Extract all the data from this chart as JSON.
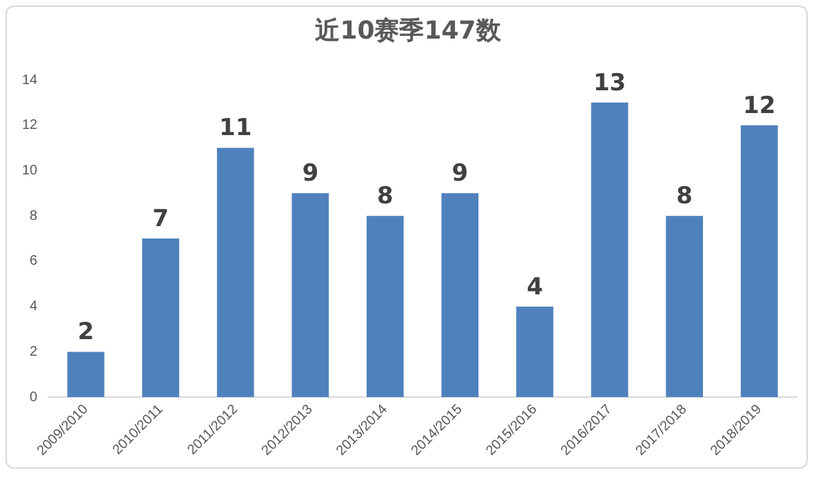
{
  "chart_data": {
    "type": "bar",
    "title": "近10赛季147数",
    "categories": [
      "2009/2010",
      "2010/2011",
      "2011/2012",
      "2012/2013",
      "2013/2014",
      "2014/2015",
      "2015/2016",
      "2016/2017",
      "2017/2018",
      "2018/2019"
    ],
    "values": [
      2,
      7,
      11,
      9,
      8,
      9,
      4,
      13,
      8,
      12
    ],
    "color": "#4f81bd",
    "ylim": [
      0,
      14
    ],
    "yticks": [
      0,
      2,
      4,
      6,
      8,
      10,
      12,
      14
    ],
    "grid": false,
    "legend": false,
    "data_labels": true
  }
}
